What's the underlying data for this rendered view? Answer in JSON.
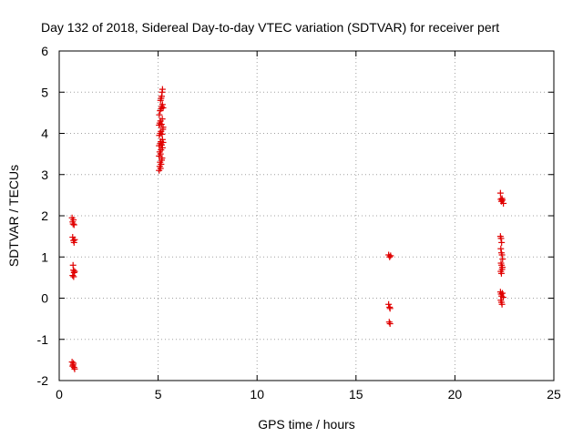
{
  "chart_data": {
    "type": "scatter",
    "title": "Day 132 of 2018, Sidereal Day-to-day VTEC variation (SDTVAR) for receiver pert",
    "xlabel": "GPS time / hours",
    "ylabel": "SDTVAR / TECUs",
    "xlim": [
      0,
      25
    ],
    "ylim": [
      -2,
      6
    ],
    "xticks": [
      0,
      5,
      10,
      15,
      20,
      25
    ],
    "yticks": [
      -2,
      -1,
      0,
      1,
      2,
      3,
      4,
      5,
      6
    ],
    "grid": true,
    "marker": "+",
    "color": "#e00000",
    "series": [
      {
        "name": "SDTVAR",
        "points": [
          [
            0.65,
            1.95
          ],
          [
            0.68,
            1.85
          ],
          [
            0.7,
            1.8
          ],
          [
            0.72,
            1.9
          ],
          [
            0.75,
            1.78
          ],
          [
            0.68,
            1.48
          ],
          [
            0.72,
            1.4
          ],
          [
            0.75,
            1.35
          ],
          [
            0.78,
            1.42
          ],
          [
            0.7,
            0.8
          ],
          [
            0.72,
            0.68
          ],
          [
            0.75,
            0.62
          ],
          [
            0.68,
            0.55
          ],
          [
            0.73,
            0.52
          ],
          [
            0.78,
            0.65
          ],
          [
            0.65,
            -1.55
          ],
          [
            0.7,
            -1.62
          ],
          [
            0.72,
            -1.58
          ],
          [
            0.75,
            -1.68
          ],
          [
            0.78,
            -1.72
          ],
          [
            0.68,
            -1.65
          ],
          [
            5.05,
            3.1
          ],
          [
            5.08,
            3.2
          ],
          [
            5.1,
            3.3
          ],
          [
            5.12,
            3.15
          ],
          [
            5.15,
            3.25
          ],
          [
            5.18,
            3.35
          ],
          [
            5.05,
            3.45
          ],
          [
            5.08,
            3.55
          ],
          [
            5.12,
            3.5
          ],
          [
            5.15,
            3.6
          ],
          [
            5.2,
            3.4
          ],
          [
            5.22,
            3.65
          ],
          [
            5.05,
            3.7
          ],
          [
            5.1,
            3.75
          ],
          [
            5.14,
            3.8
          ],
          [
            5.18,
            3.72
          ],
          [
            5.22,
            3.85
          ],
          [
            5.25,
            3.78
          ],
          [
            5.06,
            3.95
          ],
          [
            5.1,
            4.0
          ],
          [
            5.15,
            4.05
          ],
          [
            5.2,
            3.98
          ],
          [
            5.24,
            4.1
          ],
          [
            5.05,
            4.2
          ],
          [
            5.08,
            4.25
          ],
          [
            5.12,
            4.3
          ],
          [
            5.17,
            4.22
          ],
          [
            5.21,
            4.35
          ],
          [
            5.25,
            4.15
          ],
          [
            5.06,
            4.45
          ],
          [
            5.1,
            4.55
          ],
          [
            5.15,
            4.6
          ],
          [
            5.18,
            4.65
          ],
          [
            5.22,
            4.7
          ],
          [
            5.25,
            4.62
          ],
          [
            5.12,
            4.8
          ],
          [
            5.18,
            4.9
          ],
          [
            5.2,
            5.0
          ],
          [
            5.22,
            5.07
          ],
          [
            5.15,
            4.85
          ],
          [
            16.65,
            1.05
          ],
          [
            16.7,
            1.0
          ],
          [
            16.75,
            1.03
          ],
          [
            16.65,
            -0.15
          ],
          [
            16.7,
            -0.22
          ],
          [
            16.72,
            -0.25
          ],
          [
            16.68,
            -0.58
          ],
          [
            16.72,
            -0.62
          ],
          [
            22.3,
            2.55
          ],
          [
            22.32,
            2.4
          ],
          [
            22.35,
            2.35
          ],
          [
            22.38,
            2.42
          ],
          [
            22.4,
            2.38
          ],
          [
            22.45,
            2.3
          ],
          [
            22.3,
            1.5
          ],
          [
            22.33,
            1.45
          ],
          [
            22.36,
            1.35
          ],
          [
            22.32,
            1.2
          ],
          [
            22.35,
            1.1
          ],
          [
            22.38,
            1.05
          ],
          [
            22.41,
            0.95
          ],
          [
            22.33,
            0.85
          ],
          [
            22.36,
            0.8
          ],
          [
            22.4,
            0.75
          ],
          [
            22.32,
            0.65
          ],
          [
            22.35,
            0.6
          ],
          [
            22.38,
            0.7
          ],
          [
            22.3,
            0.15
          ],
          [
            22.33,
            0.1
          ],
          [
            22.36,
            0.05
          ],
          [
            22.4,
            0.12
          ],
          [
            22.44,
            0.02
          ],
          [
            22.32,
            -0.05
          ],
          [
            22.35,
            -0.1
          ],
          [
            22.38,
            -0.15
          ]
        ]
      }
    ]
  }
}
